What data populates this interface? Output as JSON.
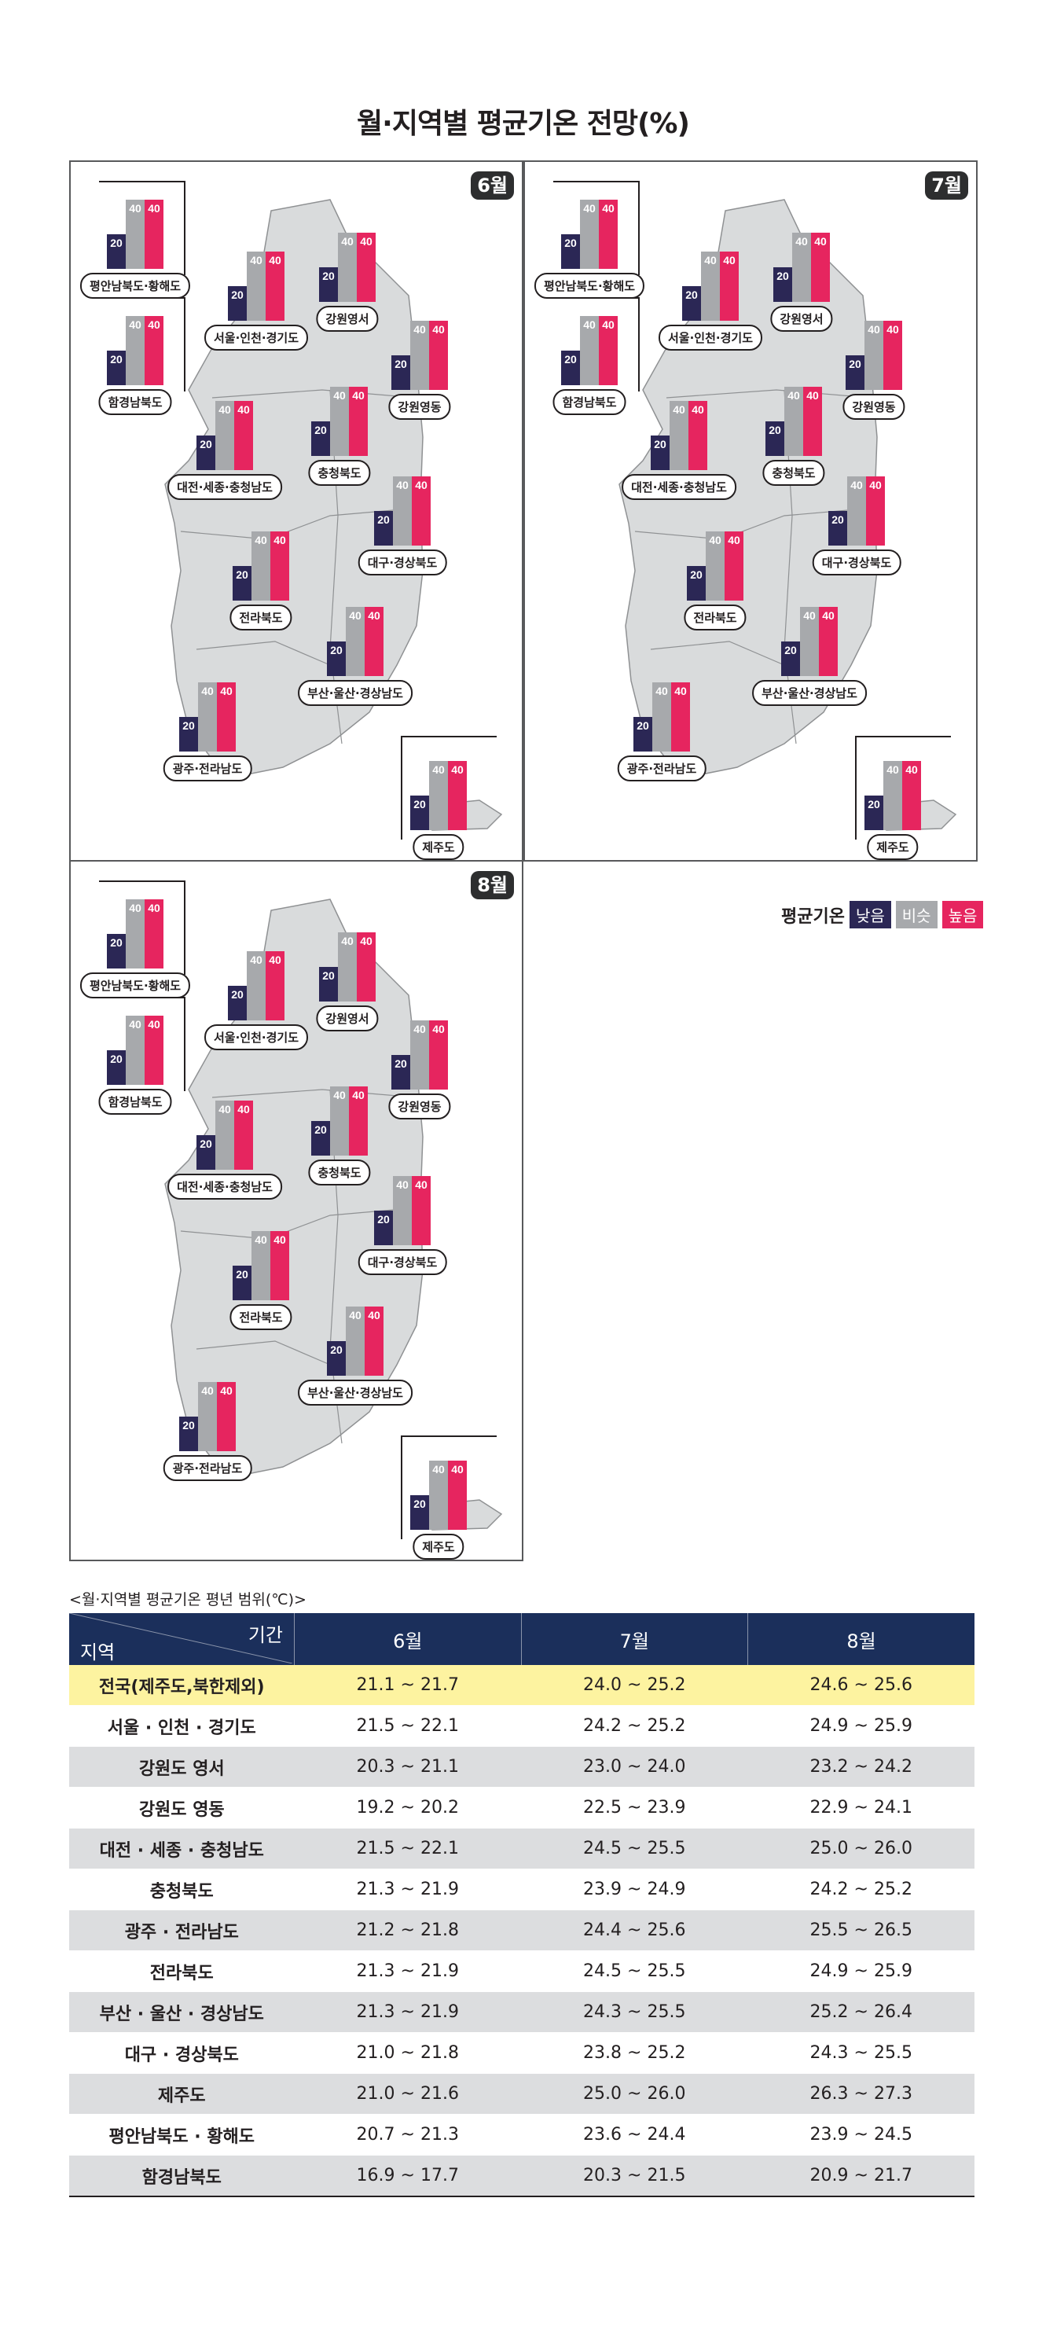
{
  "title": "월·지역별 평균기온 전망(%)",
  "colors": {
    "low": "#2b2755",
    "similar": "#a7a9ac",
    "high": "#e6255f"
  },
  "legend": {
    "title": "평균기온",
    "low": "낮음",
    "similar": "비슷",
    "high": "높음"
  },
  "chart_data": [
    {
      "type": "bar",
      "month": "6월",
      "categories": [
        "평안남북도·황해도",
        "함경남북도",
        "서울·인천·경기도",
        "강원영서",
        "강원영동",
        "대전·세종·충청남도",
        "충청북도",
        "대구·경상북도",
        "전라북도",
        "부산·울산·경상남도",
        "광주·전라남도",
        "제주도"
      ],
      "series": [
        {
          "name": "낮음",
          "values": [
            20,
            20,
            20,
            20,
            20,
            20,
            20,
            20,
            20,
            20,
            20,
            20
          ]
        },
        {
          "name": "비슷",
          "values": [
            40,
            40,
            40,
            40,
            40,
            40,
            40,
            40,
            40,
            40,
            40,
            40
          ]
        },
        {
          "name": "높음",
          "values": [
            40,
            40,
            40,
            40,
            40,
            40,
            40,
            40,
            40,
            40,
            40,
            40
          ]
        }
      ]
    },
    {
      "type": "bar",
      "month": "7월",
      "categories": [
        "평안남북도·황해도",
        "함경남북도",
        "서울·인천·경기도",
        "강원영서",
        "강원영동",
        "대전·세종·충청남도",
        "충청북도",
        "대구·경상북도",
        "전라북도",
        "부산·울산·경상남도",
        "광주·전라남도",
        "제주도"
      ],
      "series": [
        {
          "name": "낮음",
          "values": [
            20,
            20,
            20,
            20,
            20,
            20,
            20,
            20,
            20,
            20,
            20,
            20
          ]
        },
        {
          "name": "비슷",
          "values": [
            40,
            40,
            40,
            40,
            40,
            40,
            40,
            40,
            40,
            40,
            40,
            40
          ]
        },
        {
          "name": "높음",
          "values": [
            40,
            40,
            40,
            40,
            40,
            40,
            40,
            40,
            40,
            40,
            40,
            40
          ]
        }
      ]
    },
    {
      "type": "bar",
      "month": "8월",
      "categories": [
        "평안남북도·황해도",
        "함경남북도",
        "서울·인천·경기도",
        "강원영서",
        "강원영동",
        "대전·세종·충청남도",
        "충청북도",
        "대구·경상북도",
        "전라북도",
        "부산·울산·경상남도",
        "광주·전라남도",
        "제주도"
      ],
      "series": [
        {
          "name": "낮음",
          "values": [
            20,
            20,
            20,
            20,
            20,
            20,
            20,
            20,
            20,
            20,
            20,
            20
          ]
        },
        {
          "name": "비슷",
          "values": [
            40,
            40,
            40,
            40,
            40,
            40,
            40,
            40,
            40,
            40,
            40,
            40
          ]
        },
        {
          "name": "높음",
          "values": [
            40,
            40,
            40,
            40,
            40,
            40,
            40,
            40,
            40,
            40,
            40,
            40
          ]
        }
      ]
    }
  ],
  "table": {
    "caption": "<월·지역별 평균기온 평년 범위(℃)>",
    "corner_left": "지역",
    "corner_right": "기간",
    "columns": [
      "6월",
      "7월",
      "8월"
    ],
    "rows": [
      {
        "region": "전국(제주도,북한제외)",
        "values": [
          "21.1 ~ 21.7",
          "24.0 ~ 25.2",
          "24.6 ~ 25.6"
        ]
      },
      {
        "region": "서울 · 인천 · 경기도",
        "values": [
          "21.5 ~ 22.1",
          "24.2 ~ 25.2",
          "24.9 ~ 25.9"
        ]
      },
      {
        "region": "강원도 영서",
        "values": [
          "20.3 ~ 21.1",
          "23.0 ~ 24.0",
          "23.2 ~ 24.2"
        ]
      },
      {
        "region": "강원도 영동",
        "values": [
          "19.2 ~ 20.2",
          "22.5 ~ 23.9",
          "22.9 ~ 24.1"
        ]
      },
      {
        "region": "대전 · 세종 · 충청남도",
        "values": [
          "21.5 ~ 22.1",
          "24.5 ~ 25.5",
          "25.0 ~ 26.0"
        ]
      },
      {
        "region": "충청북도",
        "values": [
          "21.3 ~ 21.9",
          "23.9 ~ 24.9",
          "24.2 ~ 25.2"
        ]
      },
      {
        "region": "광주 · 전라남도",
        "values": [
          "21.2 ~ 21.8",
          "24.4 ~ 25.6",
          "25.5 ~ 26.5"
        ]
      },
      {
        "region": "전라북도",
        "values": [
          "21.3 ~ 21.9",
          "24.5 ~ 25.5",
          "24.9 ~ 25.9"
        ]
      },
      {
        "region": "부산 · 울산 · 경상남도",
        "values": [
          "21.3 ~ 21.9",
          "24.3 ~ 25.5",
          "25.2 ~ 26.4"
        ]
      },
      {
        "region": "대구 · 경상북도",
        "values": [
          "21.0 ~ 21.8",
          "23.8 ~ 25.2",
          "24.3 ~ 25.5"
        ]
      },
      {
        "region": "제주도",
        "values": [
          "21.0 ~ 21.6",
          "25.0 ~ 26.0",
          "26.3 ~ 27.3"
        ]
      },
      {
        "region": "평안남북도 · 황해도",
        "values": [
          "20.7 ~ 21.3",
          "23.6 ~ 24.4",
          "23.9 ~ 24.5"
        ]
      },
      {
        "region": "함경남북도",
        "values": [
          "16.9 ~ 17.7",
          "20.3 ~ 21.5",
          "20.9 ~ 21.7"
        ]
      }
    ]
  }
}
